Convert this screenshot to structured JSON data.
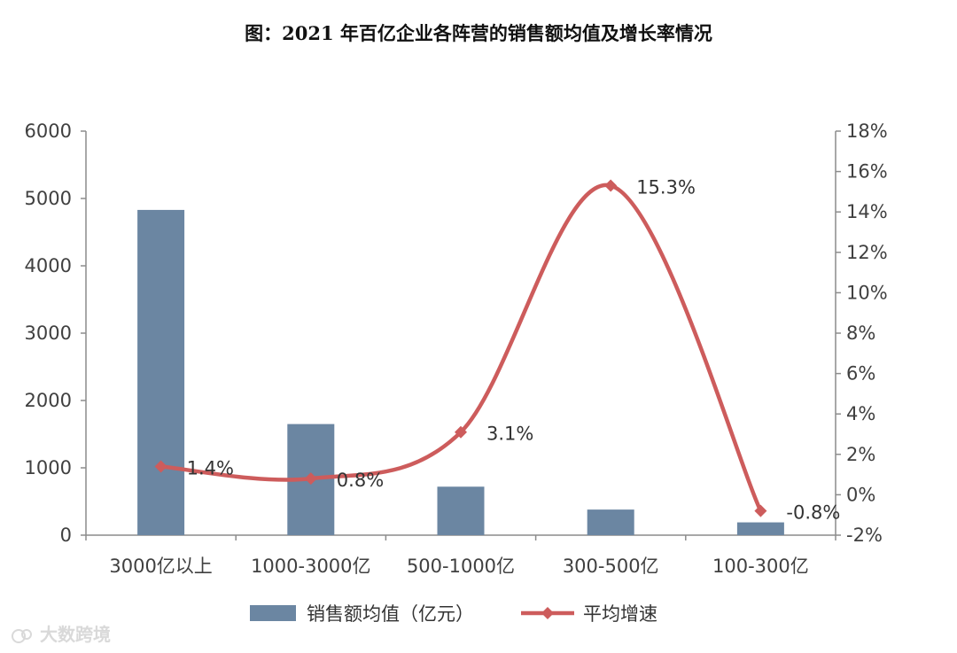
{
  "chart_data": {
    "type": "bar",
    "title": "图：2021 年百亿企业各阵营的销售额均值及增长率情况",
    "categories": [
      "3000亿以上",
      "1000-3000亿",
      "500-1000亿",
      "300-500亿",
      "100-300亿"
    ],
    "series": [
      {
        "name": "销售额均值（亿元）",
        "type": "bar",
        "axis": "left",
        "color": "#6b86a2",
        "values": [
          4830,
          1650,
          720,
          380,
          190
        ]
      },
      {
        "name": "平均增速",
        "type": "line",
        "axis": "right",
        "color": "#cd5c5c",
        "values": [
          1.4,
          0.8,
          3.1,
          15.3,
          -0.8
        ],
        "labels": [
          "1.4%",
          "0.8%",
          "3.1%",
          "15.3%",
          "-0.8%"
        ]
      }
    ],
    "y_left": {
      "min": 0,
      "max": 6000,
      "step": 1000
    },
    "y_right": {
      "min": -2,
      "max": 18,
      "step": 2,
      "suffix": "%"
    },
    "legend_position": "bottom"
  },
  "watermark": {
    "text": "大数跨境"
  }
}
